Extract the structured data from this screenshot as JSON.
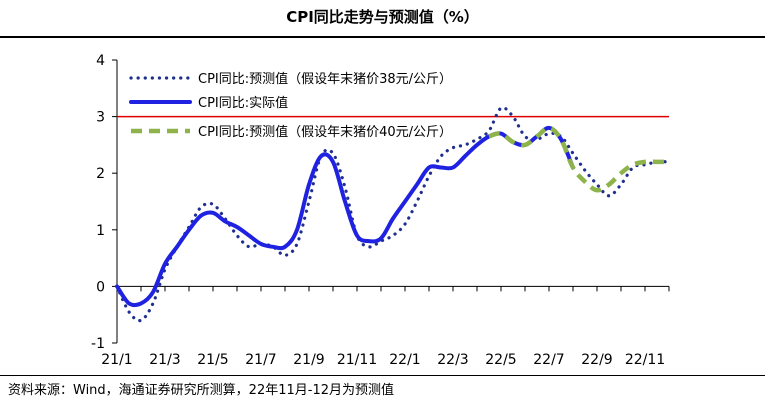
{
  "title": "CPI同比走势与预测值（%）",
  "source": "资料来源：Wind，海通证券研究所测算，22年11月-12月为预测值",
  "chart_data": {
    "type": "line",
    "ylim": [
      -1,
      4
    ],
    "yticks": [
      "-1",
      "0",
      "1",
      "2",
      "3",
      "4"
    ],
    "xticks": [
      "21/1",
      "21/3",
      "21/5",
      "21/7",
      "21/9",
      "21/11",
      "22/1",
      "22/3",
      "22/5",
      "22/7",
      "22/9",
      "22/11"
    ],
    "reference_line": {
      "y": 3,
      "color": "#e00000"
    },
    "legend_position": "top-left",
    "series": [
      {
        "name": "CPI同比:预测值（假设年末猪价38元/公斤）",
        "style": "dotted",
        "color": "#1f2f8f",
        "x": [
          0,
          0.5,
          1,
          1.5,
          2,
          2.5,
          3,
          3.5,
          4,
          4.5,
          5,
          5.5,
          6,
          6.5,
          7,
          7.5,
          8,
          8.5,
          9,
          9.5,
          10,
          10.5,
          11,
          11.5,
          12,
          12.5,
          13,
          13.5,
          14,
          14.5,
          15,
          15.5,
          16,
          16.5,
          17,
          17.5,
          18,
          18.5,
          19,
          19.5,
          20,
          20.5,
          21,
          21.5,
          22,
          22.5,
          23
        ],
        "values": [
          0,
          -0.45,
          -0.6,
          -0.3,
          0.3,
          0.7,
          1.05,
          1.4,
          1.45,
          1.2,
          0.9,
          0.7,
          0.75,
          0.7,
          0.55,
          0.75,
          1.5,
          2.3,
          2.35,
          1.75,
          0.9,
          0.7,
          0.8,
          0.9,
          1.1,
          1.5,
          1.95,
          2.3,
          2.45,
          2.5,
          2.6,
          2.75,
          3.15,
          3.0,
          2.65,
          2.6,
          2.7,
          2.65,
          2.35,
          2.05,
          1.8,
          1.6,
          1.8,
          2.1,
          2.15,
          2.2,
          2.2
        ]
      },
      {
        "name": "CPI同比:实际值",
        "style": "solid",
        "color": "#1f22e0",
        "x": [
          0,
          0.5,
          1,
          1.5,
          2,
          2.5,
          3,
          3.5,
          4,
          4.5,
          5,
          5.5,
          6,
          6.5,
          7,
          7.5,
          8,
          8.5,
          9,
          9.5,
          10,
          10.5,
          11,
          11.5,
          12,
          12.5,
          13,
          13.5,
          14,
          14.5,
          15,
          15.5,
          16,
          16.5,
          17,
          17.5,
          18,
          18.5,
          19
        ],
        "values": [
          0,
          -0.3,
          -0.3,
          -0.1,
          0.4,
          0.7,
          1.0,
          1.25,
          1.3,
          1.15,
          1.05,
          0.9,
          0.75,
          0.7,
          0.7,
          1.0,
          1.8,
          2.3,
          2.2,
          1.5,
          0.9,
          0.8,
          0.85,
          1.2,
          1.5,
          1.8,
          2.1,
          2.1,
          2.1,
          2.3,
          2.5,
          2.65,
          2.7,
          2.55,
          2.5,
          2.65,
          2.8,
          2.6,
          2.1
        ]
      },
      {
        "name": "CPI同比:预测值（假设年末猪价40元/公斤）",
        "style": "dashed",
        "color": "#8db34a",
        "x": [
          15.5,
          16,
          16.5,
          17,
          17.5,
          18,
          18.5,
          19,
          19.5,
          20,
          20.5,
          21,
          21.5,
          22,
          22.5,
          23
        ],
        "values": [
          2.65,
          2.7,
          2.55,
          2.5,
          2.65,
          2.8,
          2.6,
          2.1,
          1.85,
          1.7,
          1.8,
          2.0,
          2.15,
          2.2,
          2.2,
          2.2
        ]
      }
    ]
  }
}
